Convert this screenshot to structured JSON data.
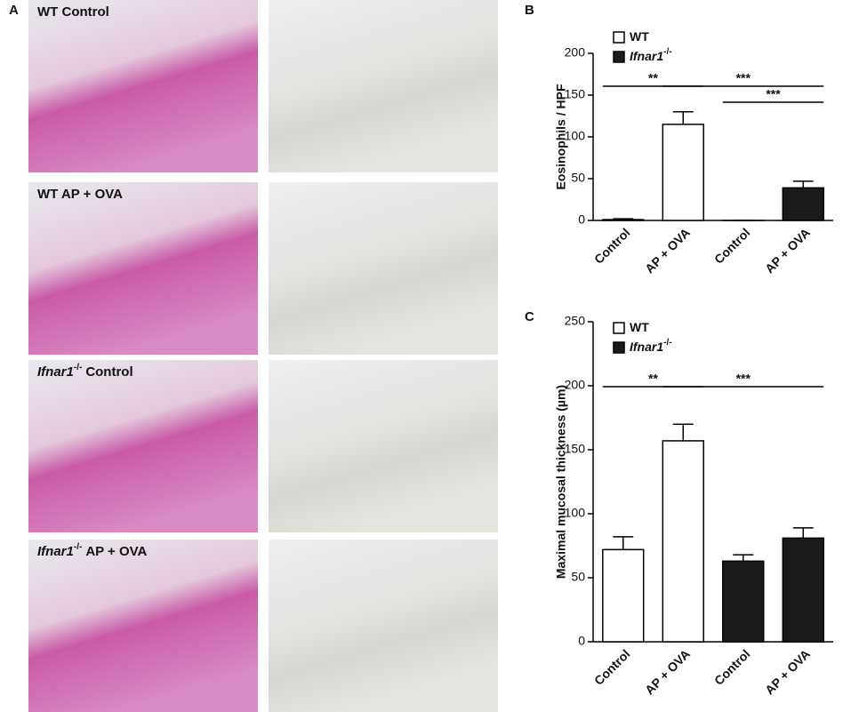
{
  "figure": {
    "panel_labels": [
      "A",
      "B",
      "C"
    ],
    "photo_labels": [
      {
        "text": "WT Control"
      },
      {
        "text": "WT AP + OVA"
      },
      {
        "gene": "Ifnar1",
        "sup": "-/-",
        "text": "Control"
      },
      {
        "gene": "Ifnar1",
        "sup": "-/-",
        "text": "AP + OVA"
      }
    ]
  },
  "chart_data": [
    {
      "type": "bar",
      "y_label": "Eosinophils / HPF",
      "categories": [
        "Control",
        "AP + OVA",
        "Control",
        "AP + OVA"
      ],
      "series": [
        {
          "name": "WT",
          "color": "#ffffff",
          "values": [
            1,
            115,
            null,
            null
          ],
          "errors": [
            1,
            15,
            null,
            null
          ]
        },
        {
          "name": "Ifnar1",
          "name_superscript": "-/-",
          "color": "#1a1a1a",
          "values": [
            null,
            null,
            0,
            39
          ],
          "errors": [
            null,
            null,
            0,
            8
          ]
        }
      ],
      "ylim": [
        0,
        200
      ],
      "yticks": [
        0,
        50,
        100,
        150,
        200
      ],
      "legend": "top-left",
      "annotations": [
        {
          "text": "**",
          "from": 0,
          "to": 1
        },
        {
          "text": "***",
          "from": 1,
          "to": 3
        },
        {
          "text": "***",
          "from": 2,
          "to": 3
        }
      ]
    },
    {
      "type": "bar",
      "y_label": "Maximal mucosal thickness (µm)",
      "categories": [
        "Control",
        "AP + OVA",
        "Control",
        "AP + OVA"
      ],
      "series": [
        {
          "name": "WT",
          "color": "#ffffff",
          "values": [
            72,
            157,
            null,
            null
          ],
          "errors": [
            10,
            13,
            null,
            null
          ]
        },
        {
          "name": "Ifnar1",
          "name_superscript": "-/-",
          "color": "#1a1a1a",
          "values": [
            null,
            null,
            63,
            81
          ],
          "errors": [
            null,
            null,
            5,
            8
          ]
        }
      ],
      "ylim": [
        0,
        250
      ],
      "yticks": [
        0,
        50,
        100,
        150,
        200,
        250
      ],
      "legend": "top-left",
      "annotations": [
        {
          "text": "**",
          "from": 0,
          "to": 1
        },
        {
          "text": "***",
          "from": 1,
          "to": 3
        }
      ]
    }
  ]
}
